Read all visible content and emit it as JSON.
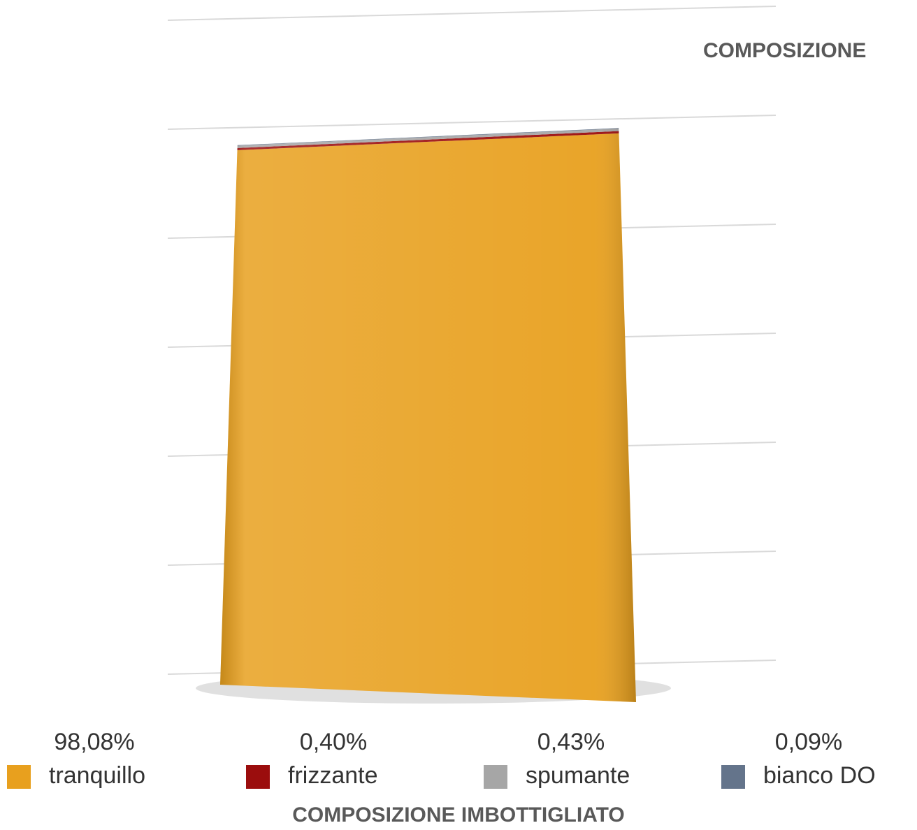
{
  "chart_data": {
    "type": "stacked-bar",
    "title": "COMPOSIZIONE IMBOTTIGLIATO",
    "subtitle": "COMPOSIZIONE",
    "categories": [
      "COMPOSIZIONE IMBOTTIGLIATO"
    ],
    "series": [
      {
        "name": "tranquillo",
        "color": "#e8a01e",
        "values": [
          98.08
        ],
        "value_labels": [
          "98,08%"
        ]
      },
      {
        "name": "frizzante",
        "color": "#9b0d0d",
        "values": [
          0.4
        ],
        "value_labels": [
          "0,40%"
        ]
      },
      {
        "name": "spumante",
        "color": "#a6a6a6",
        "values": [
          0.43
        ],
        "value_labels": [
          "0,43%"
        ]
      },
      {
        "name": "bianco DO",
        "color": "#64748b",
        "values": [
          0.09
        ],
        "value_labels": [
          "0,09%"
        ]
      }
    ],
    "ylim": [
      0,
      120
    ],
    "yticks": [
      0,
      20,
      40,
      60,
      80,
      100,
      120
    ],
    "grid": true
  }
}
